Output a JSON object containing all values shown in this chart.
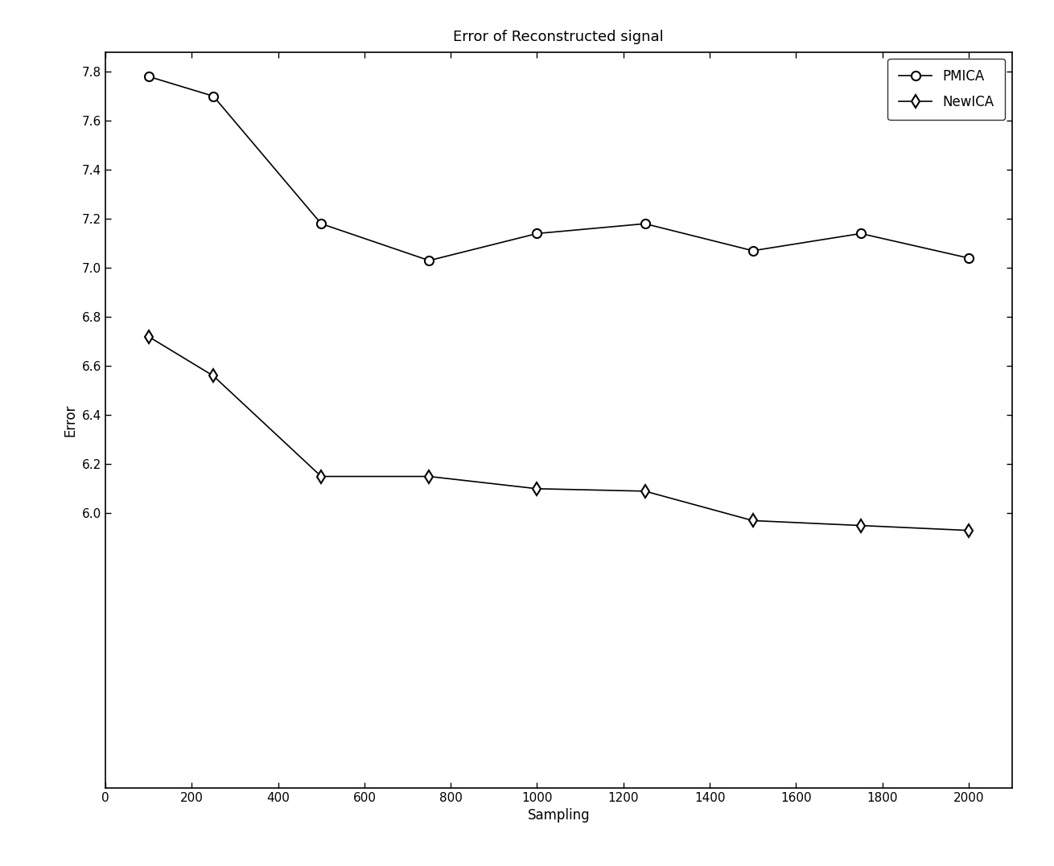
{
  "title": "Error of Reconstructed signal",
  "xlabel": "Sampling",
  "ylabel": "Error",
  "xlim": [
    0,
    2100
  ],
  "ylim_bottom": 4.88,
  "ylim_top": 7.88,
  "xticks": [
    0,
    200,
    400,
    600,
    800,
    1000,
    1200,
    1400,
    1600,
    1800,
    2000
  ],
  "yticks": [
    6.0,
    6.2,
    6.4,
    6.6,
    6.8,
    7.0,
    7.2,
    7.4,
    7.6,
    7.8
  ],
  "pmica": {
    "x": [
      100,
      250,
      500,
      750,
      1000,
      1250,
      1500,
      1750,
      2000
    ],
    "y": [
      7.78,
      7.7,
      7.18,
      7.03,
      7.14,
      7.18,
      7.07,
      7.14,
      7.04
    ],
    "label": "PMICA",
    "marker": "o",
    "color": "#000000",
    "linewidth": 1.2,
    "markersize": 8
  },
  "newica": {
    "x": [
      100,
      250,
      500,
      750,
      1000,
      1250,
      1500,
      1750,
      2000
    ],
    "y": [
      6.72,
      6.56,
      6.15,
      6.15,
      6.1,
      6.09,
      5.97,
      5.95,
      5.93
    ],
    "label": "NewICA",
    "marker": "d",
    "color": "#000000",
    "linewidth": 1.2,
    "markersize": 8
  },
  "legend_loc": "upper right",
  "background_color": "#ffffff",
  "title_fontsize": 13,
  "label_fontsize": 12,
  "tick_fontsize": 11,
  "legend_fontsize": 12
}
